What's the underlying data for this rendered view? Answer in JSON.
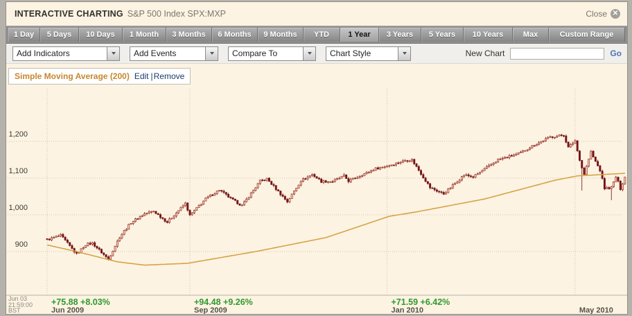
{
  "window": {
    "title": "INTERACTIVE CHARTING",
    "subtitle": "S&P 500 Index SPX:MXP",
    "close_label": "Close"
  },
  "range_buttons": {
    "selected": "1 Year",
    "items": [
      "1 Day",
      "5 Days",
      "10 Days",
      "1 Month",
      "3 Months",
      "6 Months",
      "9 Months",
      "YTD",
      "1 Year",
      "3 Years",
      "5 Years",
      "10 Years",
      "Max",
      "Custom Range"
    ]
  },
  "toolbar": {
    "dropdowns": [
      "Add Indicators",
      "Add Events",
      "Compare To",
      "Chart Style"
    ],
    "new_chart_label": "New Chart",
    "new_chart_value": "",
    "go_label": "Go"
  },
  "indicator_tag": {
    "name": "Simple Moving Average (200)",
    "edit_label": "Edit",
    "remove_label": "Remove"
  },
  "footer": {
    "timestamp_lines": [
      "Jun 03",
      "21:59:00",
      "BST"
    ]
  },
  "colors": {
    "candle_down": "#7c1416",
    "candle_down_stroke": "#6e1012",
    "candle_up_fill": "#f2dfc9",
    "candle_up_stroke": "#9a2a20",
    "sma_line": "#d6a345",
    "grid": "#cfc5ae",
    "axis_line": "#b9b3a5",
    "gain_green": "#2f992f",
    "indicator_orange": "#c8872f",
    "go_blue": "#4a74b8",
    "tag_link_navy": "#1d3a6e",
    "background_cream": "#fcf3e2"
  },
  "chart_data": {
    "type": "candlestick",
    "title": "S&P 500 Index SPX:MXP",
    "range": "1 Year",
    "start_timestamp": "Jun 03 21:59:00 BST",
    "ylim": [
      840,
      1260
    ],
    "grid": true,
    "y_ticks": [
      {
        "value": 900,
        "label": "900"
      },
      {
        "value": 1000,
        "label": "1,000"
      },
      {
        "value": 1100,
        "label": "1,100"
      },
      {
        "value": 1200,
        "label": "1,200"
      }
    ],
    "x_axis": [
      {
        "day": 0,
        "label": "Jun 2009",
        "change": "+75.88 +8.03%"
      },
      {
        "day": 63,
        "label": "Sep 2009",
        "change": "+94.48 +9.26%"
      },
      {
        "day": 150,
        "label": "Jan 2010",
        "change": "+71.59 +6.42%"
      },
      {
        "day": 233,
        "label": "May 2010",
        "change": ""
      }
    ],
    "days_total": 256,
    "price_close_anchors": [
      [
        0,
        932
      ],
      [
        6,
        944
      ],
      [
        13,
        893
      ],
      [
        17,
        919
      ],
      [
        20,
        923
      ],
      [
        27,
        879
      ],
      [
        32,
        940
      ],
      [
        37,
        979
      ],
      [
        43,
        1003
      ],
      [
        47,
        1010
      ],
      [
        53,
        980
      ],
      [
        61,
        1031
      ],
      [
        63,
        998
      ],
      [
        70,
        1044
      ],
      [
        76,
        1068
      ],
      [
        81,
        1044
      ],
      [
        86,
        1025
      ],
      [
        94,
        1092
      ],
      [
        97,
        1098
      ],
      [
        106,
        1036
      ],
      [
        112,
        1093
      ],
      [
        117,
        1110
      ],
      [
        121,
        1091
      ],
      [
        126,
        1091
      ],
      [
        131,
        1106
      ],
      [
        133,
        1092
      ],
      [
        145,
        1126
      ],
      [
        150,
        1133
      ],
      [
        158,
        1148
      ],
      [
        161,
        1150
      ],
      [
        169,
        1074
      ],
      [
        175,
        1057
      ],
      [
        184,
        1109
      ],
      [
        188,
        1103
      ],
      [
        199,
        1150
      ],
      [
        208,
        1166
      ],
      [
        214,
        1187
      ],
      [
        222,
        1212
      ],
      [
        228,
        1217
      ],
      [
        230,
        1183
      ],
      [
        233,
        1202
      ],
      [
        234,
        1174
      ],
      [
        236,
        1128
      ],
      [
        237,
        1111
      ],
      [
        240,
        1172
      ],
      [
        241,
        1157
      ],
      [
        244,
        1121
      ],
      [
        246,
        1072
      ],
      [
        249,
        1074
      ],
      [
        251,
        1103
      ],
      [
        252,
        1089
      ],
      [
        253,
        1071
      ],
      [
        255,
        1103
      ]
    ],
    "low_overrides": [
      [
        236,
        1066
      ],
      [
        249,
        1040
      ]
    ],
    "overlays": [
      {
        "name": "Simple Moving Average (200)",
        "anchors": [
          [
            0,
            918
          ],
          [
            13,
            900
          ],
          [
            31,
            872
          ],
          [
            43,
            863
          ],
          [
            62,
            868
          ],
          [
            92,
            900
          ],
          [
            123,
            938
          ],
          [
            151,
            996
          ],
          [
            163,
            1008
          ],
          [
            193,
            1043
          ],
          [
            224,
            1094
          ],
          [
            234,
            1106
          ],
          [
            255,
            1113
          ]
        ]
      }
    ]
  }
}
